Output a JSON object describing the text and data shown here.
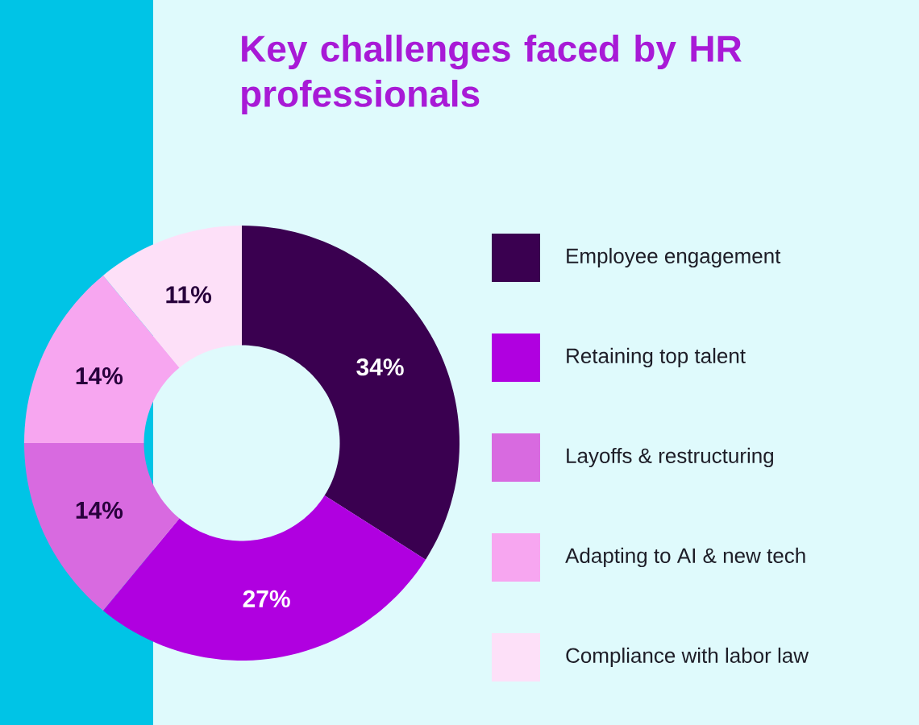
{
  "chart_data": {
    "type": "donut",
    "title": "Key challenges faced by HR professionals",
    "categories": [
      "Employee engagement",
      "Retaining  top talent",
      "Layoffs & restructuring",
      "Adapting to AI & new tech",
      "Compliance with labor law"
    ],
    "values": [
      34,
      27,
      14,
      14,
      11
    ],
    "value_labels": [
      "34%",
      "27%",
      "14%",
      "14%",
      "11%"
    ],
    "colors": [
      "#3a0050",
      "#b000e0",
      "#d86ae0",
      "#f7a6f0",
      "#fde0f8"
    ],
    "legend": "right"
  }
}
